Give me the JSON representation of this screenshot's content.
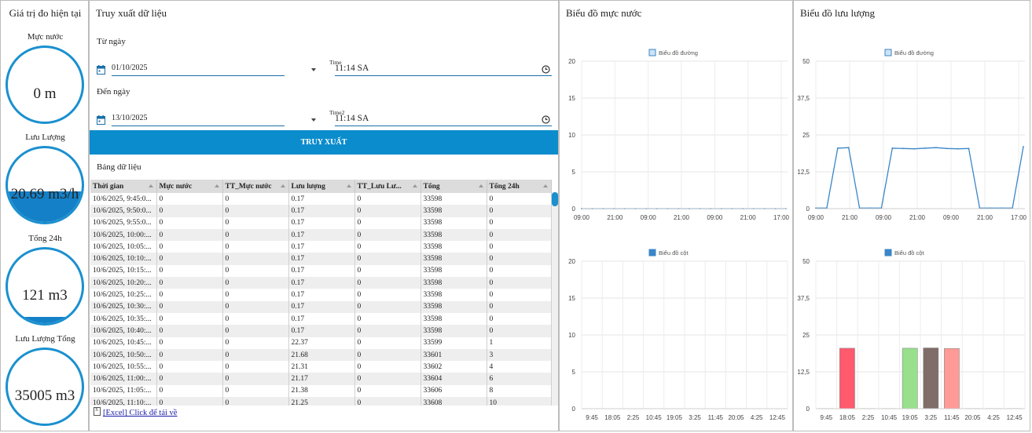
{
  "gauges": {
    "title": "Giá trị đo hiện tại",
    "items": [
      {
        "label": "Mực nước",
        "value": "0 m",
        "fill": 0
      },
      {
        "label": "Lưu Lượng",
        "value": "20.69 m3/h",
        "fill": 0.41
      },
      {
        "label": "Tổng 24h",
        "value": "121 m3",
        "fill": 0.09
      },
      {
        "label": "Lưu Lượng Tổng",
        "value": "35005 m3",
        "fill": 0
      }
    ],
    "color": "#1a90cf"
  },
  "export": {
    "title": "Truy xuất dữ liệu",
    "from_label": "Từ ngày",
    "from_date": "01/10/2025",
    "from_time_label": "Time",
    "from_time": "11:14 SA",
    "to_label": "Đến ngày",
    "to_date": "13/10/2025",
    "to_time_label": "Time2",
    "to_time": "11:14 SA",
    "query_button": "TRUY XUẤT",
    "table_title": "Bảng dữ liệu",
    "excel_link": "[Excel] Click để tải về",
    "columns": [
      "Thời gian",
      "Mực nước",
      "TT_Mực nước",
      "Lưu lượng",
      "TT_Lưu Lư...",
      "Tổng",
      "Tổng 24h"
    ],
    "rows": [
      [
        "10/6/2025, 9:45:0...",
        "0",
        "0",
        "0.17",
        "0",
        "33598",
        "0"
      ],
      [
        "10/6/2025, 9:50:0...",
        "0",
        "0",
        "0.17",
        "0",
        "33598",
        "0"
      ],
      [
        "10/6/2025, 9:55:0...",
        "0",
        "0",
        "0.17",
        "0",
        "33598",
        "0"
      ],
      [
        "10/6/2025, 10:00:...",
        "0",
        "0",
        "0.17",
        "0",
        "33598",
        "0"
      ],
      [
        "10/6/2025, 10:05:...",
        "0",
        "0",
        "0.17",
        "0",
        "33598",
        "0"
      ],
      [
        "10/6/2025, 10:10:...",
        "0",
        "0",
        "0.17",
        "0",
        "33598",
        "0"
      ],
      [
        "10/6/2025, 10:15:...",
        "0",
        "0",
        "0.17",
        "0",
        "33598",
        "0"
      ],
      [
        "10/6/2025, 10:20:...",
        "0",
        "0",
        "0.17",
        "0",
        "33598",
        "0"
      ],
      [
        "10/6/2025, 10:25:...",
        "0",
        "0",
        "0.17",
        "0",
        "33598",
        "0"
      ],
      [
        "10/6/2025, 10:30:...",
        "0",
        "0",
        "0.17",
        "0",
        "33598",
        "0"
      ],
      [
        "10/6/2025, 10:35:...",
        "0",
        "0",
        "0.17",
        "0",
        "33598",
        "0"
      ],
      [
        "10/6/2025, 10:40:...",
        "0",
        "0",
        "0.17",
        "0",
        "33598",
        "0"
      ],
      [
        "10/6/2025, 10:45:...",
        "0",
        "0",
        "22.37",
        "0",
        "33599",
        "1"
      ],
      [
        "10/6/2025, 10:50:...",
        "0",
        "0",
        "21.68",
        "0",
        "33601",
        "3"
      ],
      [
        "10/6/2025, 10:55:...",
        "0",
        "0",
        "21.31",
        "0",
        "33602",
        "4"
      ],
      [
        "10/6/2025, 11:00:...",
        "0",
        "0",
        "21.17",
        "0",
        "33604",
        "6"
      ],
      [
        "10/6/2025, 11:05:...",
        "0",
        "0",
        "21.38",
        "0",
        "33606",
        "8"
      ],
      [
        "10/6/2025, 11:10:...",
        "0",
        "0",
        "21.25",
        "0",
        "33608",
        "10"
      ]
    ]
  },
  "water_panel": {
    "title": "Biểu đồ mực nước"
  },
  "flow_panel": {
    "title": "Biểu đồ lưu lượng"
  },
  "chart_data": [
    {
      "id": "water-line",
      "type": "line",
      "legend": "Biểu đồ đường",
      "legend_position": "top",
      "color": "#3a86c8",
      "x_ticks": [
        "09:00",
        "21:00",
        "09:00",
        "21:00",
        "09:00",
        "21:00",
        "17:00"
      ],
      "y_ticks": [
        "0",
        "5",
        "10",
        "15",
        "20"
      ],
      "ylim": [
        0,
        20
      ],
      "values": [
        0,
        0,
        0,
        0,
        0,
        0,
        0,
        0,
        0,
        0,
        0,
        0,
        0,
        0,
        0,
        0,
        0,
        0,
        0,
        0
      ]
    },
    {
      "id": "water-bar",
      "type": "bar",
      "legend": "Biểu đồ cột",
      "legend_position": "top",
      "color": "#3a86c8",
      "categories": [
        "9:45",
        "18:05",
        "2:25",
        "10:45",
        "19:05",
        "3:25",
        "11:45",
        "20:05",
        "4:25",
        "12:45"
      ],
      "values": [
        0,
        0,
        0,
        0,
        0,
        0,
        0,
        0,
        0,
        0
      ],
      "y_ticks": [
        "0",
        "5",
        "10",
        "15",
        "20"
      ],
      "ylim": [
        0,
        20
      ]
    },
    {
      "id": "flow-line",
      "type": "line",
      "legend": "Biểu đồ đường",
      "legend_position": "top",
      "color": "#3a86c8",
      "x_ticks": [
        "09:00",
        "21:00",
        "09:00",
        "21:00",
        "09:00",
        "21:00",
        "17:00"
      ],
      "y_ticks": [
        "0",
        "12,5",
        "25",
        "37,5",
        "50"
      ],
      "ylim": [
        0,
        50
      ],
      "values": [
        0.2,
        0.2,
        20.5,
        20.7,
        0.2,
        0.2,
        0.2,
        20.5,
        20.4,
        20.3,
        20.5,
        20.7,
        20.4,
        20.3,
        20.4,
        0.2,
        0.2,
        0.2,
        0.2,
        21
      ]
    },
    {
      "id": "flow-bar",
      "type": "bar",
      "legend": "Biểu đồ cột",
      "legend_position": "top",
      "color": "#3a86c8",
      "categories": [
        "9:45",
        "18:05",
        "2:25",
        "10:45",
        "19:05",
        "3:25",
        "11:45",
        "20:05",
        "4:25",
        "12:45"
      ],
      "values": [
        0.2,
        20.5,
        0.2,
        0.2,
        20.5,
        20.6,
        20.4,
        0.2,
        0.2,
        0.2
      ],
      "bar_colors": [
        "#ddd8c8",
        "#ff5a6e",
        "#ddd8c8",
        "#ddd8c8",
        "#98e08c",
        "#806c68",
        "#ff9a96",
        "#ddd8c8",
        "#ddd8c8",
        "#ddd8c8"
      ],
      "y_ticks": [
        "0",
        "12,5",
        "25",
        "37,5",
        "50"
      ],
      "ylim": [
        0,
        50
      ]
    }
  ]
}
